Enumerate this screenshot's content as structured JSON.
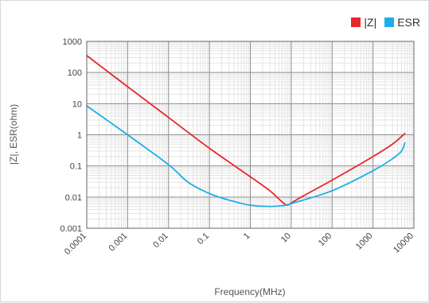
{
  "chart_data": {
    "type": "line",
    "x_scale": "log",
    "y_scale": "log",
    "xlabel": "Frequency(MHz)",
    "ylabel": "|Z|, ESR(ohm)",
    "xlim": [
      0.0001,
      10000
    ],
    "ylim": [
      0.001,
      1000
    ],
    "x_ticks": [
      "0.0001",
      "0.001",
      "0.01",
      "0.1",
      "1",
      "10",
      "100",
      "1000",
      "10000"
    ],
    "y_ticks": [
      "0.001",
      "0.01",
      "0.1",
      "1",
      "10",
      "100",
      "1000"
    ],
    "grid": true,
    "legend_position": "top-right",
    "series": [
      {
        "name": "|Z|",
        "color": "#e8262b",
        "points": [
          [
            0.0001,
            350
          ],
          [
            0.001,
            35
          ],
          [
            0.01,
            3.6
          ],
          [
            0.1,
            0.37
          ],
          [
            1,
            0.045
          ],
          [
            3,
            0.016
          ],
          [
            6,
            0.007
          ],
          [
            8,
            0.0055
          ],
          [
            10,
            0.0065
          ],
          [
            20,
            0.011
          ],
          [
            100,
            0.035
          ],
          [
            1000,
            0.2
          ],
          [
            3000,
            0.5
          ],
          [
            6000,
            1.1
          ]
        ]
      },
      {
        "name": "ESR",
        "color": "#1eaee8",
        "points": [
          [
            0.0001,
            8.5
          ],
          [
            0.001,
            1.0
          ],
          [
            0.01,
            0.11
          ],
          [
            0.03,
            0.03
          ],
          [
            0.1,
            0.013
          ],
          [
            0.3,
            0.008
          ],
          [
            1,
            0.0055
          ],
          [
            3,
            0.005
          ],
          [
            6,
            0.0053
          ],
          [
            10,
            0.0062
          ],
          [
            100,
            0.016
          ],
          [
            1000,
            0.07
          ],
          [
            3000,
            0.17
          ],
          [
            5000,
            0.3
          ],
          [
            6000,
            0.55
          ]
        ]
      }
    ]
  }
}
